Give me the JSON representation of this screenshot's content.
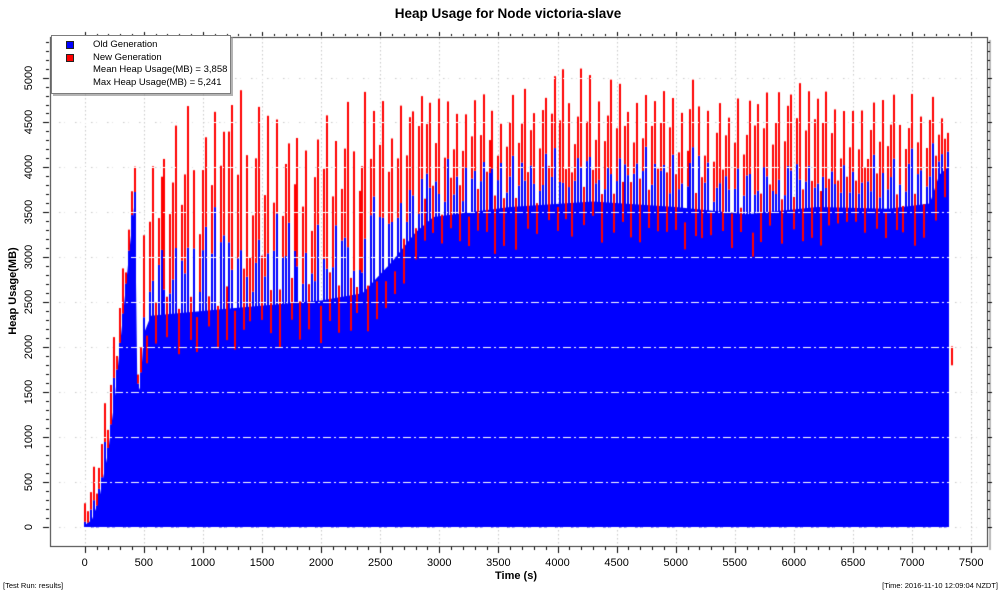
{
  "title": "Heap Usage for Node victoria-slave",
  "footer": {
    "left": "[Test Run: results]",
    "right": "[Time: 2016-11-10 12:09:04 NZDT]"
  },
  "chart_data": {
    "type": "area",
    "title": "Heap Usage for Node victoria-slave",
    "xlabel": "Time (s)",
    "ylabel": "Heap Usage(MB)",
    "x_ticks": [
      0,
      500,
      1000,
      1500,
      2000,
      2500,
      3000,
      3500,
      4000,
      4500,
      5000,
      5500,
      6000,
      6500,
      7000,
      7500
    ],
    "y_ticks": [
      0,
      500,
      1000,
      1500,
      2000,
      2500,
      3000,
      3500,
      4000,
      4500,
      5000
    ],
    "x_minor_step": 100,
    "y_minor_step": 100,
    "xlim_data": [
      0,
      7340
    ],
    "ylim_data": [
      0,
      5241
    ],
    "grid": true,
    "legend_position": "top-left",
    "legend": {
      "entries": [
        {
          "label": "Old Generation",
          "color": "#0000ff"
        },
        {
          "label": "New Generation",
          "color": "#ff0000"
        }
      ],
      "stats": [
        "Mean Heap Usage(MB) = 3,858",
        "Max Heap Usage(MB) = 5,241"
      ]
    },
    "mean_heap_mb": 3858,
    "max_heap_mb": 5241,
    "series": [
      {
        "name": "Old Generation",
        "color": "#0000ff"
      },
      {
        "name": "New Generation",
        "color": "#ff0000"
      }
    ],
    "colors": {
      "old_gen": "#0000ff",
      "new_gen": "#ff0000",
      "grid": "#c8c8c8",
      "grid_overlay": "#ffffff",
      "box": "#333333",
      "shadow": "#b8b8b8"
    },
    "sampling": {
      "t_start": 0,
      "t_end": 7300,
      "interval_s": 25,
      "sawtooth_period_s": 80
    },
    "envelopes": {
      "old_gen_floor": [
        [
          0,
          20
        ],
        [
          60,
          80
        ],
        [
          120,
          300
        ],
        [
          200,
          850
        ],
        [
          260,
          1500
        ],
        [
          320,
          2300
        ],
        [
          380,
          3100
        ],
        [
          425,
          3650
        ],
        [
          445,
          1600
        ],
        [
          470,
          1520
        ],
        [
          500,
          2150
        ],
        [
          560,
          2350
        ],
        [
          1200,
          2430
        ],
        [
          2000,
          2520
        ],
        [
          2350,
          2600
        ],
        [
          2600,
          2950
        ],
        [
          2800,
          3280
        ],
        [
          2950,
          3450
        ],
        [
          3600,
          3560
        ],
        [
          4300,
          3620
        ],
        [
          5000,
          3560
        ],
        [
          5600,
          3480
        ],
        [
          6200,
          3560
        ],
        [
          6800,
          3540
        ],
        [
          7150,
          3600
        ],
        [
          7230,
          3920
        ],
        [
          7300,
          4000
        ]
      ],
      "blue_spike_top": [
        [
          0,
          60
        ],
        [
          120,
          520
        ],
        [
          200,
          1150
        ],
        [
          260,
          1850
        ],
        [
          320,
          2650
        ],
        [
          380,
          3450
        ],
        [
          425,
          3800
        ],
        [
          445,
          1750
        ],
        [
          470,
          1700
        ],
        [
          500,
          3000
        ],
        [
          560,
          3850
        ],
        [
          1000,
          4050
        ],
        [
          1500,
          4150
        ],
        [
          2000,
          4100
        ],
        [
          2500,
          4150
        ],
        [
          3000,
          4180
        ],
        [
          3700,
          4280
        ],
        [
          4400,
          4330
        ],
        [
          5100,
          4250
        ],
        [
          5800,
          4300
        ],
        [
          6500,
          4280
        ],
        [
          7100,
          4300
        ],
        [
          7300,
          4380
        ]
      ],
      "total_spike_top": [
        [
          0,
          350
        ],
        [
          60,
          700
        ],
        [
          120,
          1150
        ],
        [
          200,
          1650
        ],
        [
          260,
          2350
        ],
        [
          320,
          3150
        ],
        [
          380,
          3900
        ],
        [
          425,
          4100
        ],
        [
          445,
          1950
        ],
        [
          470,
          2050
        ],
        [
          500,
          3500
        ],
        [
          560,
          4350
        ],
        [
          700,
          4650
        ],
        [
          1000,
          4800
        ],
        [
          1250,
          5000
        ],
        [
          1600,
          5120
        ],
        [
          1900,
          4880
        ],
        [
          2200,
          5060
        ],
        [
          2500,
          4900
        ],
        [
          2800,
          5000
        ],
        [
          3100,
          5160
        ],
        [
          3500,
          4960
        ],
        [
          3900,
          5100
        ],
        [
          4400,
          5241
        ],
        [
          4800,
          5050
        ],
        [
          5200,
          5150
        ],
        [
          5600,
          4950
        ],
        [
          6000,
          5120
        ],
        [
          6400,
          5010
        ],
        [
          6800,
          5160
        ],
        [
          7100,
          4950
        ],
        [
          7230,
          4720
        ],
        [
          7300,
          4600
        ]
      ]
    },
    "final_blip": {
      "t": 7340,
      "from": 1800,
      "to": 2010
    }
  }
}
